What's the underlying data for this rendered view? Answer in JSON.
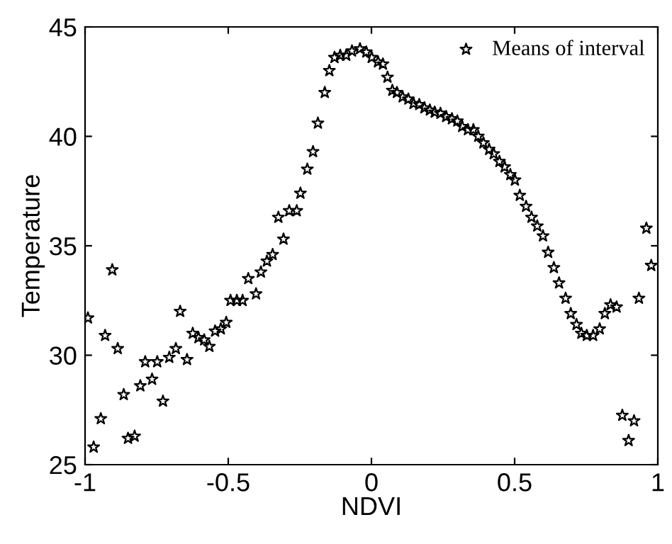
{
  "chart_data": {
    "type": "scatter",
    "xlabel": "NDVI",
    "ylabel": "Temperature",
    "xlim": [
      -1,
      1
    ],
    "ylim": [
      25,
      45
    ],
    "xticks": [
      -1,
      -0.5,
      0,
      0.5,
      1
    ],
    "yticks": [
      25,
      30,
      35,
      40,
      45
    ],
    "grid": false,
    "legend": "top right",
    "marker": "star",
    "series": [
      {
        "name": "Means of interval",
        "color": "#000000",
        "x": [
          -0.99,
          -0.97,
          -0.945,
          -0.93,
          -0.905,
          -0.886,
          -0.865,
          -0.85,
          -0.827,
          -0.807,
          -0.79,
          -0.766,
          -0.748,
          -0.728,
          -0.706,
          -0.683,
          -0.668,
          -0.644,
          -0.624,
          -0.604,
          -0.584,
          -0.566,
          -0.546,
          -0.526,
          -0.507,
          -0.492,
          -0.47,
          -0.45,
          -0.43,
          -0.403,
          -0.386,
          -0.365,
          -0.345,
          -0.325,
          -0.307,
          -0.287,
          -0.261,
          -0.248,
          -0.224,
          -0.204,
          -0.187,
          -0.163,
          -0.147,
          -0.129,
          -0.109,
          -0.088,
          -0.068,
          -0.04,
          -0.018,
          0.001,
          0.023,
          0.04,
          0.056,
          0.073,
          0.089,
          0.109,
          0.129,
          0.147,
          0.167,
          0.185,
          0.204,
          0.221,
          0.241,
          0.261,
          0.281,
          0.3,
          0.317,
          0.337,
          0.356,
          0.373,
          0.391,
          0.411,
          0.427,
          0.447,
          0.465,
          0.485,
          0.501,
          0.518,
          0.54,
          0.559,
          0.579,
          0.599,
          0.617,
          0.637,
          0.655,
          0.678,
          0.696,
          0.716,
          0.733,
          0.752,
          0.774,
          0.797,
          0.815,
          0.835,
          0.856,
          0.876,
          0.898,
          0.917,
          0.934,
          0.96,
          0.977
        ],
        "values": [
          31.7,
          25.8,
          27.1,
          30.9,
          33.9,
          30.3,
          28.2,
          26.2,
          26.3,
          28.6,
          29.7,
          28.9,
          29.7,
          27.9,
          29.9,
          30.3,
          32.0,
          29.8,
          31.0,
          30.8,
          30.7,
          30.4,
          31.1,
          31.2,
          31.5,
          32.5,
          32.5,
          32.5,
          33.5,
          32.8,
          33.8,
          34.3,
          34.6,
          36.3,
          35.3,
          36.6,
          36.6,
          37.4,
          38.5,
          39.3,
          40.6,
          42.0,
          43.0,
          43.6,
          43.7,
          43.7,
          43.9,
          44.0,
          43.85,
          43.6,
          43.4,
          43.3,
          42.7,
          42.1,
          42.0,
          41.8,
          41.7,
          41.5,
          41.45,
          41.3,
          41.2,
          41.1,
          41.05,
          40.9,
          40.8,
          40.7,
          40.45,
          40.3,
          40.3,
          40.0,
          39.7,
          39.4,
          39.2,
          38.85,
          38.6,
          38.25,
          38.0,
          37.3,
          36.8,
          36.3,
          35.9,
          35.45,
          34.7,
          34.0,
          33.3,
          32.6,
          31.9,
          31.4,
          31.0,
          30.9,
          30.9,
          31.2,
          31.9,
          32.3,
          32.2,
          27.25,
          26.1,
          27.0,
          32.6,
          35.8,
          34.1
        ]
      }
    ]
  }
}
